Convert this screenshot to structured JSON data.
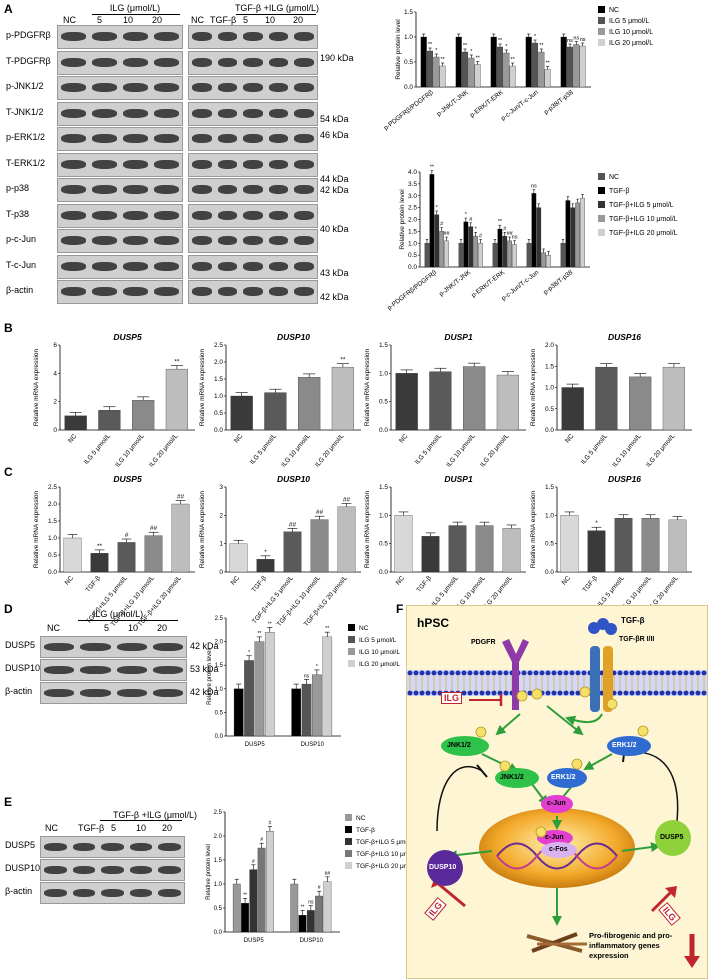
{
  "panel_labels": {
    "A": "A",
    "B": "B",
    "C": "C",
    "D": "D",
    "E": "E",
    "F": "F"
  },
  "panelA": {
    "blot1": {
      "header": {
        "nc": "NC",
        "group": "ILG (μmol/L)",
        "doses": [
          "5",
          "10",
          "20"
        ]
      },
      "rows": [
        "p-PDGFRβ",
        "T-PDGFRβ",
        "p-JNK1/2",
        "T-JNK1/2",
        "p-ERK1/2",
        "T-ERK1/2",
        "p-p38",
        "T-p38",
        "p-c-Jun",
        "T-c-Jun",
        "β-actin"
      ]
    },
    "blot2": {
      "header": {
        "nc": "NC",
        "tgf": "TGF-β",
        "group": "TGF-β +ILG (μmol/L)",
        "doses": [
          "5",
          "10",
          "20"
        ]
      },
      "kda": [
        "190 kDa",
        "54 kDa",
        "46 kDa",
        "44 kDa",
        "42 kDa",
        "40 kDa",
        "43 kDa",
        "42 kDa"
      ]
    }
  },
  "panelD": {
    "header": {
      "nc": "NC",
      "group": "ILG (μmol/L)",
      "doses": [
        "5",
        "10",
        "20"
      ]
    },
    "rows": [
      "DUSP5",
      "DUSP10",
      "β-actin"
    ],
    "kda": [
      "42 kDa",
      "53 kDa",
      "42 kDa"
    ]
  },
  "panelE": {
    "header": {
      "nc": "NC",
      "tgf": "TGF-β",
      "group": "TGF-β +ILG (μmol/L)",
      "doses": [
        "5",
        "10",
        "20"
      ]
    },
    "rows": [
      "DUSP5",
      "DUSP10",
      "β-actin"
    ]
  },
  "pathway": {
    "cell": "hPSC",
    "tgf": "TGF-β",
    "receptor": "TGF-βR I/II",
    "pdgfr": "PDGFR",
    "ilg": "ILG",
    "jnk": "JNK1/2",
    "erk": "ERK1/2",
    "cjun": "c-Jun",
    "cfos": "c-Fos",
    "dusp10": "DUSP10",
    "dusp5": "DUSP5",
    "p": "P",
    "outcome": "Pro-fibrogenic and pro-inflammatory genes expression"
  },
  "chart_data": [
    {
      "id": "A-top",
      "type": "bar",
      "ylabel": "Relative protein level",
      "ylim": [
        0,
        1.5
      ],
      "yticks": [
        "0.0",
        "0.5",
        "1.0",
        "1.5"
      ],
      "categories": [
        "p-PDGFRβ/PDGFRβ",
        "p-JNK/T-JNK",
        "p-ERK/T-ERK",
        "p-c-Jun/T-c-Jun",
        "p-p38/T-p38"
      ],
      "series": [
        {
          "name": "NC",
          "values": [
            1.0,
            1.0,
            1.0,
            1.0,
            1.0
          ]
        },
        {
          "name": "ILG 5 μmol/L",
          "values": [
            0.72,
            0.7,
            0.8,
            0.88,
            0.8
          ]
        },
        {
          "name": "ILG 10 μmol/L",
          "values": [
            0.6,
            0.58,
            0.68,
            0.7,
            0.85
          ]
        },
        {
          "name": "ILG 20 μmol/L",
          "values": [
            0.42,
            0.45,
            0.42,
            0.35,
            0.82
          ]
        }
      ],
      "colors": [
        "#000000",
        "#555555",
        "#999999",
        "#cfcfcf"
      ],
      "annotations": [
        "**",
        "*",
        "**",
        "**",
        "*",
        "**",
        "**",
        "*",
        "**",
        "*",
        "**",
        "**",
        "ns",
        "ns",
        "ns"
      ]
    },
    {
      "id": "A-bottom",
      "type": "bar",
      "ylabel": "Relative protein level",
      "ylim": [
        0,
        4.0
      ],
      "yticks": [
        "0.0",
        "0.5",
        "1.0",
        "1.5",
        "2.0",
        "2.5",
        "3.0",
        "3.5",
        "4.0"
      ],
      "categories": [
        "p-PDGFRβ/PDGFRβ",
        "p-JNK/T-JNK",
        "p-ERK/T-ERK",
        "p-c-Jun/T-c-Jun",
        "p-p38/T-p38"
      ],
      "series": [
        {
          "name": "NC",
          "values": [
            1.0,
            1.0,
            1.0,
            1.0,
            1.0
          ]
        },
        {
          "name": "TGF-β",
          "values": [
            3.9,
            1.9,
            1.6,
            3.1,
            2.8
          ]
        },
        {
          "name": "TGF-β+ILG 5 μmol/L",
          "values": [
            2.2,
            1.7,
            1.3,
            2.5,
            2.5
          ]
        },
        {
          "name": "TGF-β+ILG 10 μmol/L",
          "values": [
            1.5,
            1.3,
            1.1,
            0.6,
            2.7
          ]
        },
        {
          "name": "TGF-β+ILG 20 μmol/L",
          "values": [
            1.1,
            1.0,
            0.95,
            0.5,
            2.9
          ]
        }
      ],
      "colors": [
        "#555555",
        "#000000",
        "#333333",
        "#999999",
        "#cfcfcf"
      ],
      "annotations": [
        "**",
        "*",
        "#",
        "##",
        "*",
        "#",
        "*",
        "#",
        "**",
        "#",
        "##",
        "ns",
        "ns"
      ]
    },
    {
      "id": "B1",
      "type": "bar",
      "title": "DUSP5",
      "ylabel": "Relative mRNA expression",
      "ylim": [
        0,
        6
      ],
      "yticks": [
        "0",
        "2",
        "4",
        "6"
      ],
      "categories": [
        "NC",
        "ILG 5 μmol/L",
        "ILG 10 μmol/L",
        "ILG 20 μmol/L"
      ],
      "values": [
        1.0,
        1.4,
        2.1,
        4.3
      ],
      "annotations": [
        "",
        "",
        "",
        "**"
      ]
    },
    {
      "id": "B2",
      "type": "bar",
      "title": "DUSP10",
      "ylabel": "Relative mRNA expression",
      "ylim": [
        0,
        2.5
      ],
      "yticks": [
        "0.0",
        "0.5",
        "1.0",
        "1.5",
        "2.0",
        "2.5"
      ],
      "categories": [
        "NC",
        "ILG 5 μmol/L",
        "ILG 10 μmol/L",
        "ILG 20 μmol/L"
      ],
      "values": [
        1.0,
        1.1,
        1.55,
        1.85
      ],
      "annotations": [
        "",
        "",
        "",
        "**"
      ]
    },
    {
      "id": "B3",
      "type": "bar",
      "title": "DUSP1",
      "ylabel": "Relative mRNA expression",
      "ylim": [
        0,
        1.5
      ],
      "yticks": [
        "0.0",
        "0.5",
        "1.0",
        "1.5"
      ],
      "categories": [
        "NC",
        "ILG 5 μmol/L",
        "ILG 10 μmol/L",
        "ILG 20 μmol/L"
      ],
      "values": [
        1.0,
        1.03,
        1.12,
        0.97
      ],
      "annotations": [
        "",
        "",
        "",
        ""
      ]
    },
    {
      "id": "B4",
      "type": "bar",
      "title": "DUSP16",
      "ylabel": "Relative mRNA expression",
      "ylim": [
        0,
        2.0
      ],
      "yticks": [
        "0.0",
        "0.5",
        "1.0",
        "1.5",
        "2.0"
      ],
      "categories": [
        "NC",
        "ILG 5 μmol/L",
        "ILG 10 μmol/L",
        "ILG 20 μmol/L"
      ],
      "values": [
        1.0,
        1.48,
        1.25,
        1.48
      ],
      "annotations": [
        "",
        "",
        "",
        ""
      ]
    },
    {
      "id": "C1",
      "type": "bar",
      "title": "DUSP5",
      "ylabel": "Relative mRNA expression",
      "ylim": [
        0,
        2.5
      ],
      "yticks": [
        "0.0",
        "0.5",
        "1.0",
        "1.5",
        "2.0",
        "2.5"
      ],
      "categories": [
        "NC",
        "TGF-β",
        "TGF-β+ILG 5 μmol/L",
        "TGF-β+ILG 10 μmol/L",
        "TGF-β+ILG 20 μmol/L"
      ],
      "values": [
        1.0,
        0.55,
        0.87,
        1.07,
        2.0
      ],
      "annotations": [
        "",
        "**",
        "#",
        "##",
        "##"
      ]
    },
    {
      "id": "C2",
      "type": "bar",
      "title": "DUSP10",
      "ylabel": "Relative mRNA expression",
      "ylim": [
        0,
        3
      ],
      "yticks": [
        "0",
        "1",
        "2",
        "3"
      ],
      "categories": [
        "NC",
        "TGF-β",
        "TGF-β+ILG 5 μmol/L",
        "TGF-β+ILG 10 μmol/L",
        "TGF-β+ILG 20 μmol/L"
      ],
      "values": [
        1.0,
        0.45,
        1.42,
        1.85,
        2.3
      ],
      "annotations": [
        "",
        "*",
        "##",
        "##",
        "##"
      ]
    },
    {
      "id": "C3",
      "type": "bar",
      "title": "DUSP1",
      "ylabel": "Relative mRNA expression",
      "ylim": [
        0,
        1.5
      ],
      "yticks": [
        "0.0",
        "0.5",
        "1.0",
        "1.5"
      ],
      "categories": [
        "NC",
        "TGF-β",
        "TGF-β+ILG 5 μmol/L",
        "TGF-β+ILG 10 μmol/L",
        "TGF-β+ILG 20 μmol/L"
      ],
      "values": [
        1.0,
        0.63,
        0.82,
        0.82,
        0.77
      ],
      "annotations": [
        "",
        "",
        "",
        "",
        ""
      ]
    },
    {
      "id": "C4",
      "type": "bar",
      "title": "DUSP16",
      "ylabel": "Relative mRNA expression",
      "ylim": [
        0,
        1.5
      ],
      "yticks": [
        "0.0",
        "0.5",
        "1.0",
        "1.5"
      ],
      "categories": [
        "NC",
        "TGF-β",
        "TGF-β+ILG 5 μmol/L",
        "TGF-β+ILG 10 μmol/L",
        "TGF-β+ILG 20 μmol/L"
      ],
      "values": [
        1.0,
        0.73,
        0.95,
        0.95,
        0.92
      ],
      "annotations": [
        "",
        "*",
        "",
        "",
        ""
      ]
    },
    {
      "id": "D",
      "type": "bar",
      "ylabel": "Relative protein level",
      "ylim": [
        0,
        2.5
      ],
      "yticks": [
        "0.0",
        "0.5",
        "1.0",
        "1.5",
        "2.0",
        "2.5"
      ],
      "categories": [
        "DUSP5",
        "DUSP10"
      ],
      "series": [
        {
          "name": "NC",
          "values": [
            1.0,
            1.0
          ]
        },
        {
          "name": "ILG 5 μmol/L",
          "values": [
            1.6,
            1.1
          ]
        },
        {
          "name": "ILG 10 μmol/L",
          "values": [
            2.0,
            1.3
          ]
        },
        {
          "name": "ILG 20 μmol/L",
          "values": [
            2.2,
            2.1
          ]
        }
      ],
      "colors": [
        "#000000",
        "#555555",
        "#999999",
        "#cfcfcf"
      ],
      "annotations": [
        "*",
        "**",
        "**",
        "ns",
        "*",
        "**"
      ]
    },
    {
      "id": "E",
      "type": "bar",
      "ylabel": "Relative protein level",
      "ylim": [
        0,
        2.5
      ],
      "yticks": [
        "0.0",
        "0.5",
        "1.0",
        "1.5",
        "2.0",
        "2.5"
      ],
      "categories": [
        "DUSP5",
        "DUSP10"
      ],
      "series": [
        {
          "name": "NC",
          "values": [
            1.0,
            1.0
          ]
        },
        {
          "name": "TGF-β",
          "values": [
            0.6,
            0.35
          ]
        },
        {
          "name": "TGF-β+ILG 5 μmol/L",
          "values": [
            1.3,
            0.45
          ]
        },
        {
          "name": "TGF-β+ILG 10 μmol/L",
          "values": [
            1.75,
            0.75
          ]
        },
        {
          "name": "TGF-β+ILG 20 μmol/L",
          "values": [
            2.1,
            1.05
          ]
        }
      ],
      "colors": [
        "#999999",
        "#000000",
        "#333333",
        "#777777",
        "#cfcfcf"
      ],
      "annotations": [
        "**",
        "#",
        "#",
        "#",
        "**",
        "ns",
        "#",
        "##"
      ]
    }
  ]
}
